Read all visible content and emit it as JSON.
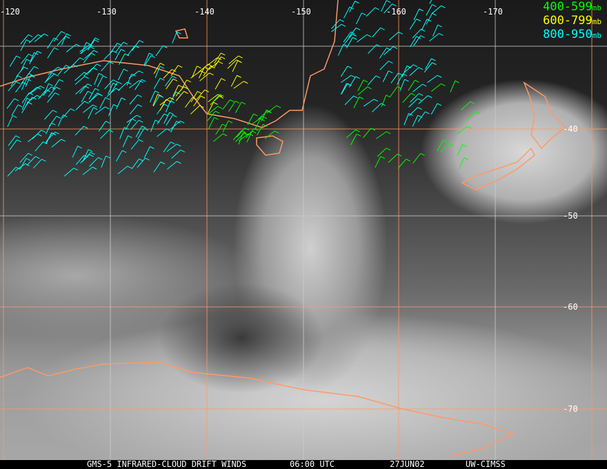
{
  "longitude_labels": [
    "-120",
    "-130",
    "-140",
    "-150",
    "-160",
    "-170"
  ],
  "latitude_labels": [
    "-40",
    "-50",
    "-60",
    "-70"
  ],
  "legend": [
    {
      "range": "400-599",
      "unit": "mb",
      "color": "#00ff00"
    },
    {
      "range": "600-799",
      "unit": "mb",
      "color": "#ffff00"
    },
    {
      "range": "800-950",
      "unit": "mb",
      "color": "#00ffff"
    }
  ],
  "caption": {
    "title": "GMS-5 INFRARED-CLOUD DRIFT WINDS",
    "time": "06:00 UTC",
    "date": "27JUN02",
    "source": "UW-CIMSS"
  },
  "colors": {
    "grid": "#ffffff",
    "coast": "#ff9966"
  }
}
